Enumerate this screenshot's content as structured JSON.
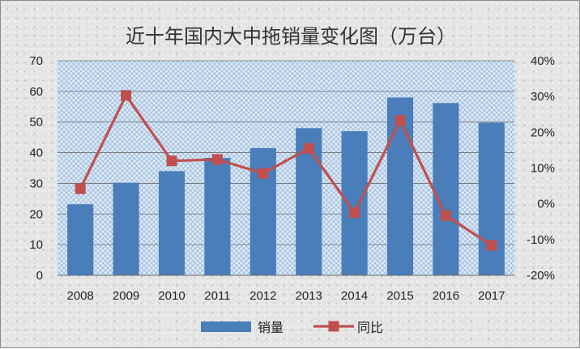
{
  "chart_data": {
    "type": "bar+line",
    "title": "近十年国内大中拖销量变化图（万台）",
    "categories": [
      "2008",
      "2009",
      "2010",
      "2011",
      "2012",
      "2013",
      "2014",
      "2015",
      "2016",
      "2017"
    ],
    "series": [
      {
        "name": "销量",
        "type": "bar",
        "axis": "left",
        "color": "#4a7ebb",
        "values": [
          23.2,
          30.2,
          34.0,
          38.3,
          41.5,
          48.0,
          47.0,
          58.0,
          56.2,
          49.8
        ]
      },
      {
        "name": "同比",
        "type": "line",
        "axis": "right",
        "color": "#c0504d",
        "values": [
          4.2,
          30.3,
          12.0,
          12.4,
          8.5,
          15.5,
          -2.5,
          23.3,
          -3.3,
          -11.6
        ]
      }
    ],
    "y_left": {
      "min": 0,
      "max": 70,
      "step": 10,
      "ticks": [
        "0",
        "10",
        "20",
        "30",
        "40",
        "50",
        "60",
        "70"
      ]
    },
    "y_right": {
      "min": -20,
      "max": 40,
      "step": 10,
      "ticks": [
        "-20%",
        "-10%",
        "0%",
        "10%",
        "20%",
        "30%",
        "40%"
      ]
    },
    "grid": true,
    "legend": {
      "position": "bottom",
      "items": [
        "销量",
        "同比"
      ]
    }
  }
}
